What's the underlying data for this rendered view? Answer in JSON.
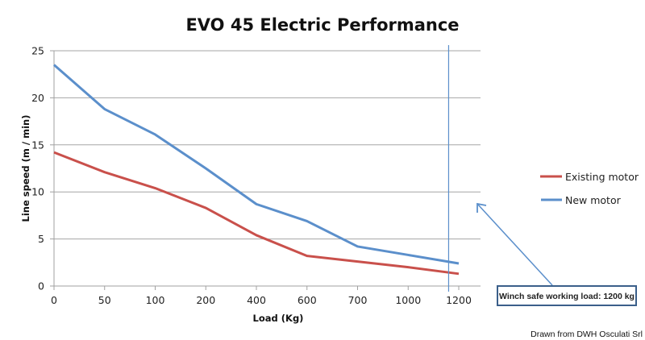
{
  "chart_data": {
    "type": "line",
    "title": "EVO 45 Electric Performance",
    "xlabel": "Load (Kg)",
    "ylabel": "Line speed (m / min)",
    "categories": [
      "0",
      "50",
      "100",
      "200",
      "400",
      "600",
      "700",
      "1000",
      "1200"
    ],
    "yticks": [
      "0",
      "5",
      "10",
      "15",
      "20",
      "25"
    ],
    "ylim": [
      0,
      25
    ],
    "grid": true,
    "legend_position": "right",
    "series": [
      {
        "name": "Existing motor",
        "color": "#c9504b",
        "values": [
          14.2,
          12.1,
          10.4,
          8.3,
          5.4,
          3.2,
          2.6,
          2.0,
          1.3
        ]
      },
      {
        "name": "New motor",
        "color": "#5b8fcb",
        "values": [
          23.5,
          18.8,
          16.1,
          12.5,
          8.7,
          6.9,
          4.2,
          3.3,
          2.4
        ]
      }
    ],
    "reference_line": {
      "x_category_position": 7.8,
      "color": "#5b8fcb"
    },
    "annotation": {
      "text": "Winch safe working load: 1200 kg",
      "border_color": "#3b5f8a"
    },
    "credit": "Drawn from DWH Osculati Srl"
  }
}
